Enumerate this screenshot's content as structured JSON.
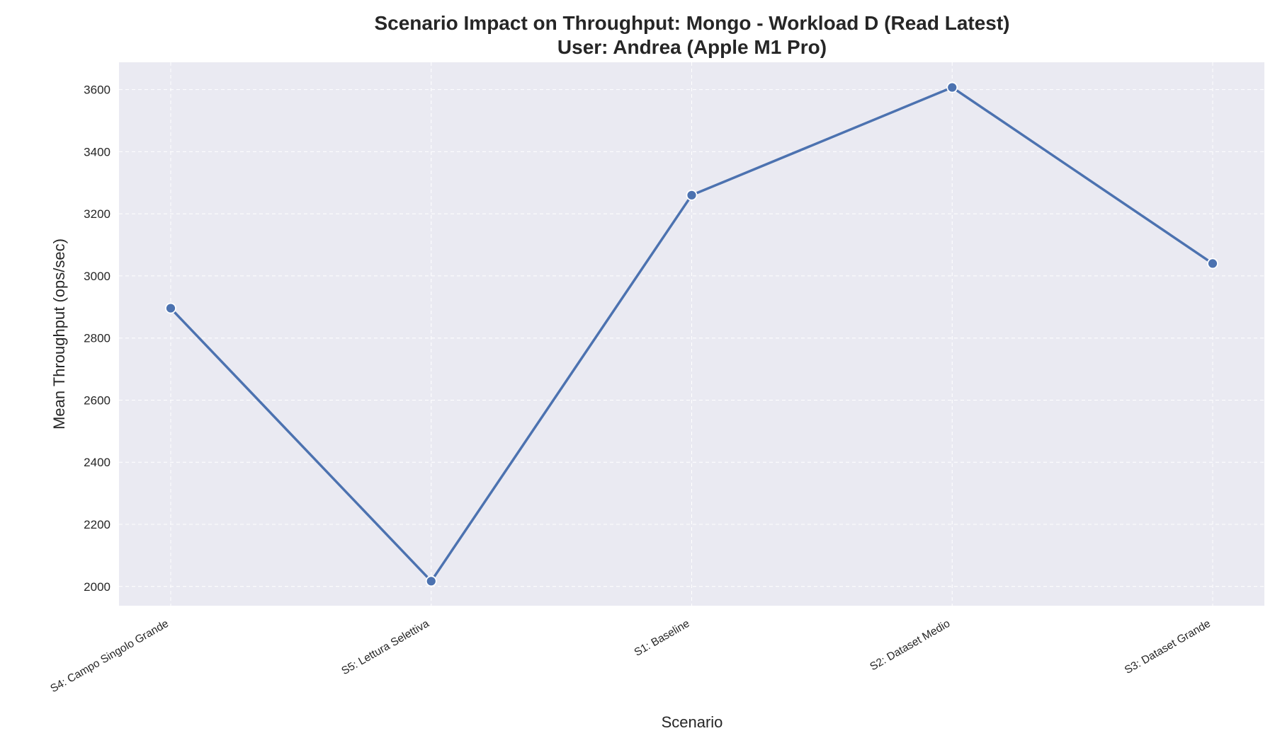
{
  "chart_data": {
    "type": "line",
    "title": "Scenario Impact on Throughput: Mongo - Workload D (Read Latest)",
    "subtitle": "User: Andrea (Apple M1 Pro)",
    "xlabel": "Scenario",
    "ylabel": "Mean Throughput (ops/sec)",
    "categories": [
      "S4: Campo Singolo Grande",
      "S5: Lettura Selettiva",
      "S1: Baseline",
      "S2: Dataset Medio",
      "S3: Dataset Grande"
    ],
    "values": [
      2896,
      2017,
      3260,
      3607,
      3040
    ],
    "ylim": [
      1938,
      3688
    ],
    "yticks": [
      2000,
      2200,
      2400,
      2600,
      2800,
      3000,
      3200,
      3400,
      3600
    ],
    "grid": true,
    "colors": {
      "series": "#4c72b0",
      "plot_background": "#eaeaf2",
      "grid": "#ffffff"
    }
  }
}
